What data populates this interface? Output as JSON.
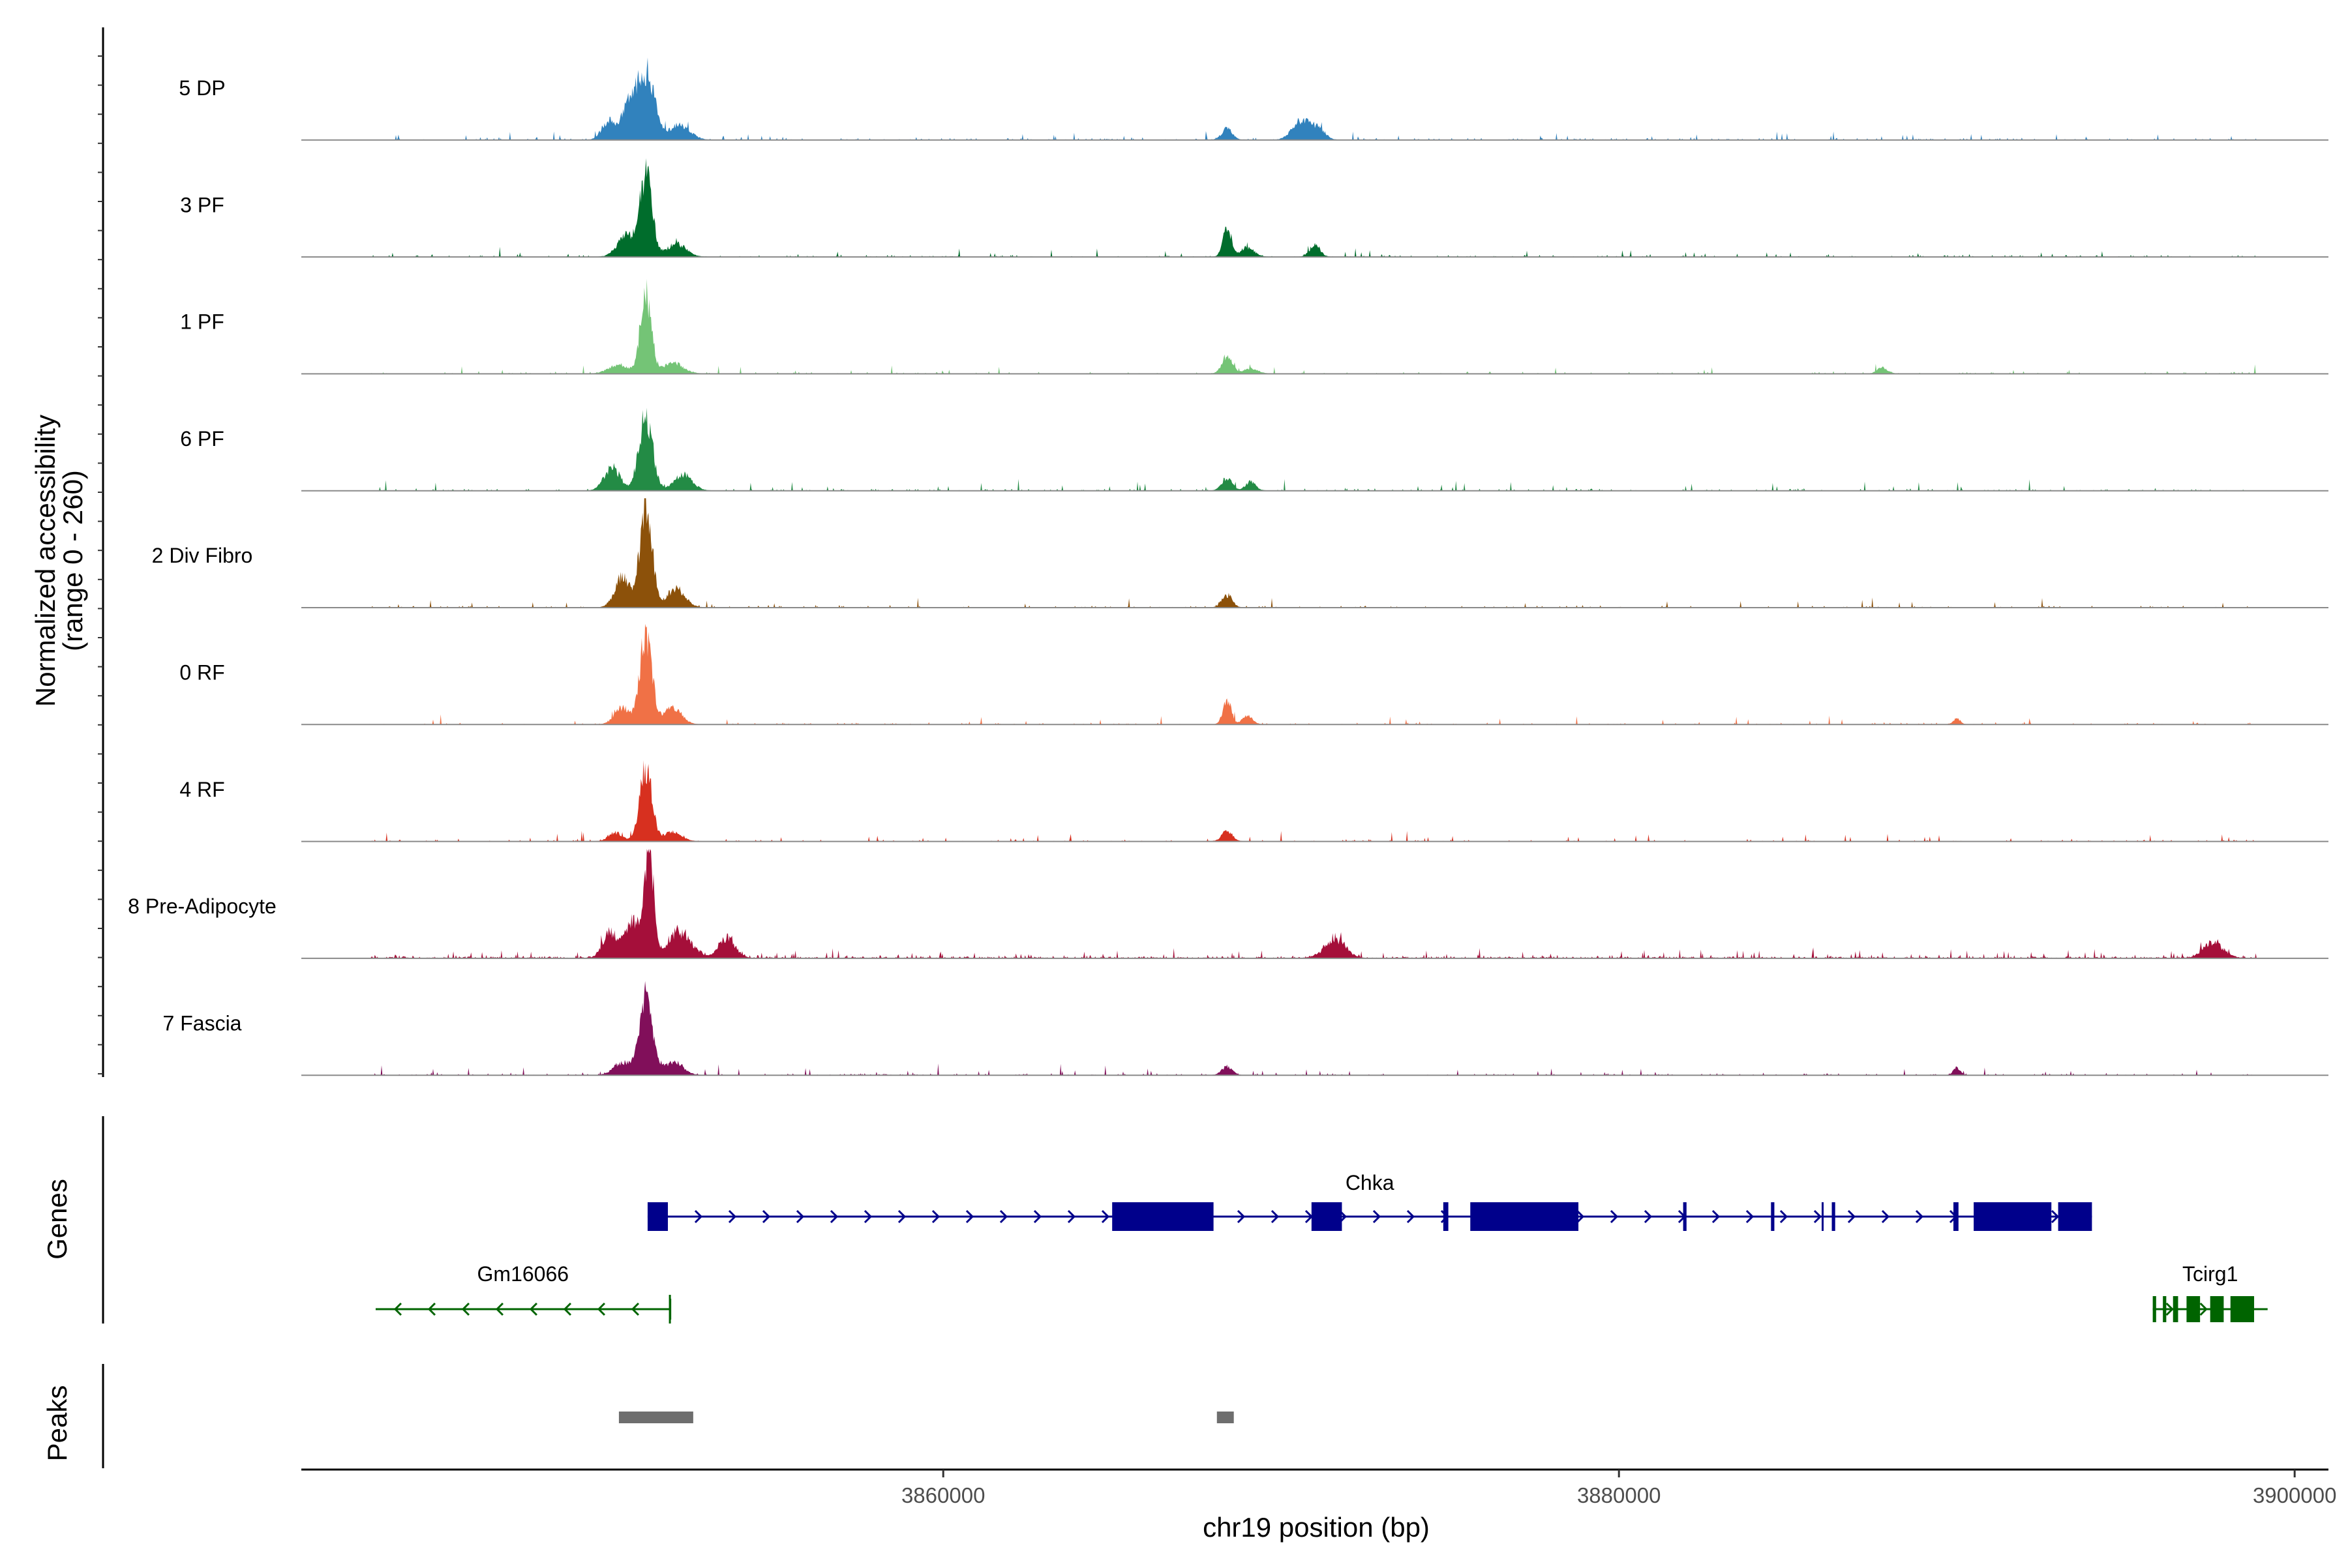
{
  "chart_data": {
    "type": "area",
    "title": "",
    "chromosome": "chr19",
    "xlabel": "chr19 position (bp)",
    "xlim": [
      3841000,
      3901000
    ],
    "xticks": [
      3860000,
      3880000,
      3900000
    ],
    "xtick_labels": [
      "3860000",
      "3880000",
      "3900000"
    ],
    "coverage_ylabel": [
      "Normalized accessibility",
      "(range 0 - 260)"
    ],
    "coverage_ylim": [
      0,
      260
    ],
    "genes_label": "Genes",
    "peaks_label": "Peaks",
    "tracks": [
      {
        "name": "5 DP",
        "color": "#3182BD",
        "noise": 0.04,
        "peaks": [
          [
            3851200,
            160,
            250
          ],
          [
            3850700,
            85,
            200
          ],
          [
            3850100,
            45,
            200
          ],
          [
            3852200,
            35,
            300
          ],
          [
            3868400,
            28,
            150
          ],
          [
            3870600,
            45,
            260
          ],
          [
            3871100,
            25,
            200
          ]
        ]
      },
      {
        "name": "3 PF",
        "color": "#006D2C",
        "noise": 0.04,
        "peaks": [
          [
            3851200,
            200,
            180
          ],
          [
            3850600,
            50,
            250
          ],
          [
            3852100,
            30,
            280
          ],
          [
            3868400,
            75,
            120
          ],
          [
            3869000,
            22,
            200
          ],
          [
            3871000,
            28,
            150
          ]
        ]
      },
      {
        "name": "1 PF",
        "color": "#74C476",
        "noise": 0.03,
        "peaks": [
          [
            3851200,
            185,
            160
          ],
          [
            3850400,
            20,
            300
          ],
          [
            3852000,
            25,
            300
          ],
          [
            3868400,
            42,
            150
          ],
          [
            3869100,
            12,
            200
          ],
          [
            3887800,
            14,
            150
          ]
        ]
      },
      {
        "name": "6 PF",
        "color": "#238B45",
        "noise": 0.04,
        "peaks": [
          [
            3851200,
            175,
            200
          ],
          [
            3850200,
            55,
            230
          ],
          [
            3852300,
            40,
            260
          ],
          [
            3868400,
            30,
            150
          ],
          [
            3869100,
            20,
            150
          ]
        ]
      },
      {
        "name": "2 Div Fibro",
        "color": "#8C510A",
        "noise": 0.03,
        "peaks": [
          [
            3851200,
            245,
            180
          ],
          [
            3850500,
            70,
            220
          ],
          [
            3852100,
            45,
            260
          ],
          [
            3868400,
            30,
            150
          ]
        ]
      },
      {
        "name": "0 RF",
        "color": "#F07146",
        "noise": 0.03,
        "peaks": [
          [
            3851200,
            210,
            180
          ],
          [
            3850500,
            40,
            220
          ],
          [
            3852000,
            40,
            250
          ],
          [
            3868400,
            58,
            120
          ],
          [
            3869000,
            20,
            150
          ],
          [
            3890000,
            14,
            100
          ]
        ]
      },
      {
        "name": "4 RF",
        "color": "#D7301F",
        "noise": 0.03,
        "peaks": [
          [
            3851200,
            170,
            180
          ],
          [
            3850300,
            20,
            200
          ],
          [
            3852000,
            22,
            250
          ],
          [
            3868400,
            25,
            150
          ]
        ]
      },
      {
        "name": "8 Pre-Adipocyte",
        "color": "#A50F3A",
        "noise": 0.14,
        "peaks": [
          [
            3851300,
            260,
            130
          ],
          [
            3850800,
            85,
            250
          ],
          [
            3850100,
            55,
            200
          ],
          [
            3852200,
            60,
            350
          ],
          [
            3853600,
            45,
            250
          ],
          [
            3871600,
            45,
            300
          ],
          [
            3897600,
            35,
            300
          ]
        ]
      },
      {
        "name": "7 Fascia",
        "color": "#810F5A",
        "noise": 0.04,
        "peaks": [
          [
            3851200,
            180,
            200
          ],
          [
            3850500,
            30,
            250
          ],
          [
            3852000,
            30,
            280
          ],
          [
            3868400,
            20,
            150
          ],
          [
            3890000,
            18,
            100
          ]
        ]
      }
    ],
    "genes": [
      {
        "name": "Chka",
        "strand": "+",
        "color": "#00008B",
        "start": 3851250,
        "end": 3894000,
        "exons": [
          [
            3851250,
            3851850
          ],
          [
            3865000,
            3868000
          ],
          [
            3870900,
            3871800
          ],
          [
            3874800,
            3874950
          ],
          [
            3875600,
            3878800
          ],
          [
            3881900,
            3882000
          ],
          [
            3884500,
            3884600
          ],
          [
            3886000,
            3886050
          ],
          [
            3886300,
            3886400
          ],
          [
            3889900,
            3890050
          ],
          [
            3890500,
            3892800
          ],
          [
            3893000,
            3894000
          ]
        ]
      },
      {
        "name": "Gm16066",
        "strand": "-",
        "color": "#006400",
        "start": 3843200,
        "end": 3851920,
        "exons": [
          [
            3851880,
            3851920
          ]
        ]
      },
      {
        "name": "Tcirg1",
        "strand": "+",
        "color": "#006400",
        "start": 3895800,
        "end": 3899200,
        "exons": [
          [
            3895800,
            3895900
          ],
          [
            3896100,
            3896200
          ],
          [
            3896400,
            3896550
          ],
          [
            3896800,
            3897200
          ],
          [
            3897500,
            3897900
          ],
          [
            3898100,
            3898800
          ]
        ]
      }
    ],
    "peak_regions": [
      [
        3850400,
        3852600
      ],
      [
        3868100,
        3868600
      ]
    ]
  }
}
